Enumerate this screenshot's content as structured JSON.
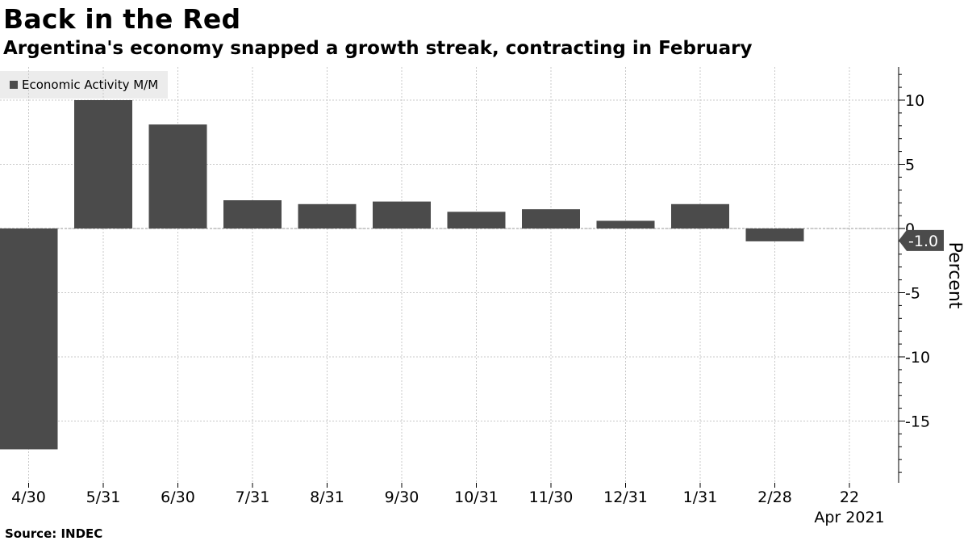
{
  "header": {
    "title": "Back in the Red",
    "subtitle": "Argentina's economy snapped a growth streak, contracting in February"
  },
  "legend": {
    "label": "Economic Activity M/M"
  },
  "footer": {
    "source": "Source: INDEC"
  },
  "colors": {
    "bar": "#4b4b4b",
    "grid": "#c8c8c8",
    "callout": "#4b4b4b",
    "legend_bg": "#ececec"
  },
  "chart_data": {
    "type": "bar",
    "categories": [
      "4/30",
      "5/31",
      "6/30",
      "7/31",
      "8/31",
      "9/30",
      "10/31",
      "11/30",
      "12/31",
      "1/31",
      "2/28"
    ],
    "series": [
      {
        "name": "Economic Activity M/M",
        "values": [
          -17.2,
          10.0,
          8.1,
          2.2,
          1.9,
          2.1,
          1.3,
          1.5,
          0.6,
          1.9,
          -1.0
        ]
      }
    ],
    "x_tick_labels": [
      "4/30",
      "5/31",
      "6/30",
      "7/31",
      "8/31",
      "9/30",
      "10/31",
      "11/30",
      "12/31",
      "1/31",
      "2/28",
      "22"
    ],
    "x_sublabel": "Apr 2021",
    "ylabel": "Percent",
    "ylim": [
      -19.5,
      12.5
    ],
    "yticks": [
      10,
      5,
      0,
      -5,
      -10,
      -15
    ],
    "ytick_labels": [
      "10",
      "5",
      "0",
      "-5",
      "-10",
      "-15"
    ],
    "last_value_label": "-1.0",
    "grid": true,
    "legend_position": "top-left"
  }
}
